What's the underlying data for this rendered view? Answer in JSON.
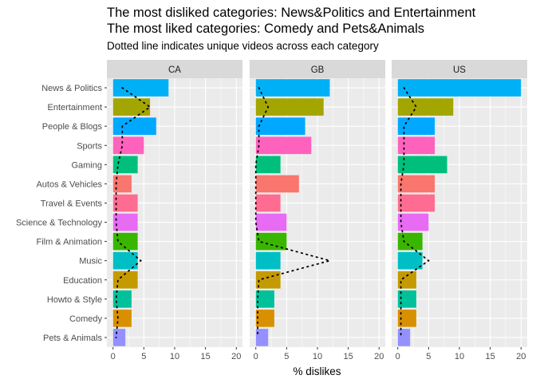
{
  "chart_data": {
    "type": "bar",
    "title_lines": [
      "The most disliked categories: News&Politics and Entertainment",
      "The most liked categories: Comedy and Pets&Animals"
    ],
    "subtitle": "Dotted line indicates unique videos across each category",
    "xlabel": "% dislikes",
    "ylabel": "",
    "xlim": [
      0,
      20
    ],
    "x_ticks": [
      "0",
      "5",
      "10",
      "15",
      "20"
    ],
    "grid": true,
    "legend": "none",
    "categories": [
      "News & Politics",
      "Entertainment",
      "People & Blogs",
      "Sports",
      "Gaming",
      "Autos & Vehicles",
      "Travel & Events",
      "Science & Technology",
      "Film & Animation",
      "Music",
      "Education",
      "Howto & Style",
      "Comedy",
      "Pets & Animals"
    ],
    "category_colors": [
      "#00B0F6",
      "#A3A500",
      "#00A9FF",
      "#FF62BC",
      "#00BF7D",
      "#F8766D",
      "#FF6C91",
      "#E76BF3",
      "#39B600",
      "#00BFC4",
      "#C49A00",
      "#00C19A",
      "#D89000",
      "#9590FF"
    ],
    "panels": [
      {
        "name": "CA",
        "values": [
          9,
          6,
          7,
          5,
          4,
          3,
          4,
          4,
          4,
          4,
          4,
          3,
          3,
          2
        ],
        "unique_videos_pct": [
          1.5,
          6,
          1.5,
          1.5,
          0.8,
          0.5,
          0.5,
          0.5,
          0.8,
          4.5,
          0.8,
          0.5,
          0.8,
          0.5
        ]
      },
      {
        "name": "GB",
        "values": [
          12,
          11,
          8,
          9,
          4,
          7,
          4,
          5,
          5,
          4,
          4,
          3,
          3,
          2
        ],
        "unique_videos_pct": [
          0.5,
          2,
          0.5,
          0.5,
          0,
          0,
          0,
          0,
          0.5,
          12,
          0.5,
          0.3,
          0.3,
          0.3
        ]
      },
      {
        "name": "US",
        "values": [
          20,
          9,
          6,
          6,
          8,
          6,
          6,
          5,
          4,
          4,
          3,
          3,
          3,
          2
        ],
        "unique_videos_pct": [
          1,
          3,
          1,
          1,
          1,
          0.5,
          0.5,
          0.5,
          1,
          5,
          0.5,
          0.5,
          0.5,
          0.5
        ]
      }
    ]
  }
}
